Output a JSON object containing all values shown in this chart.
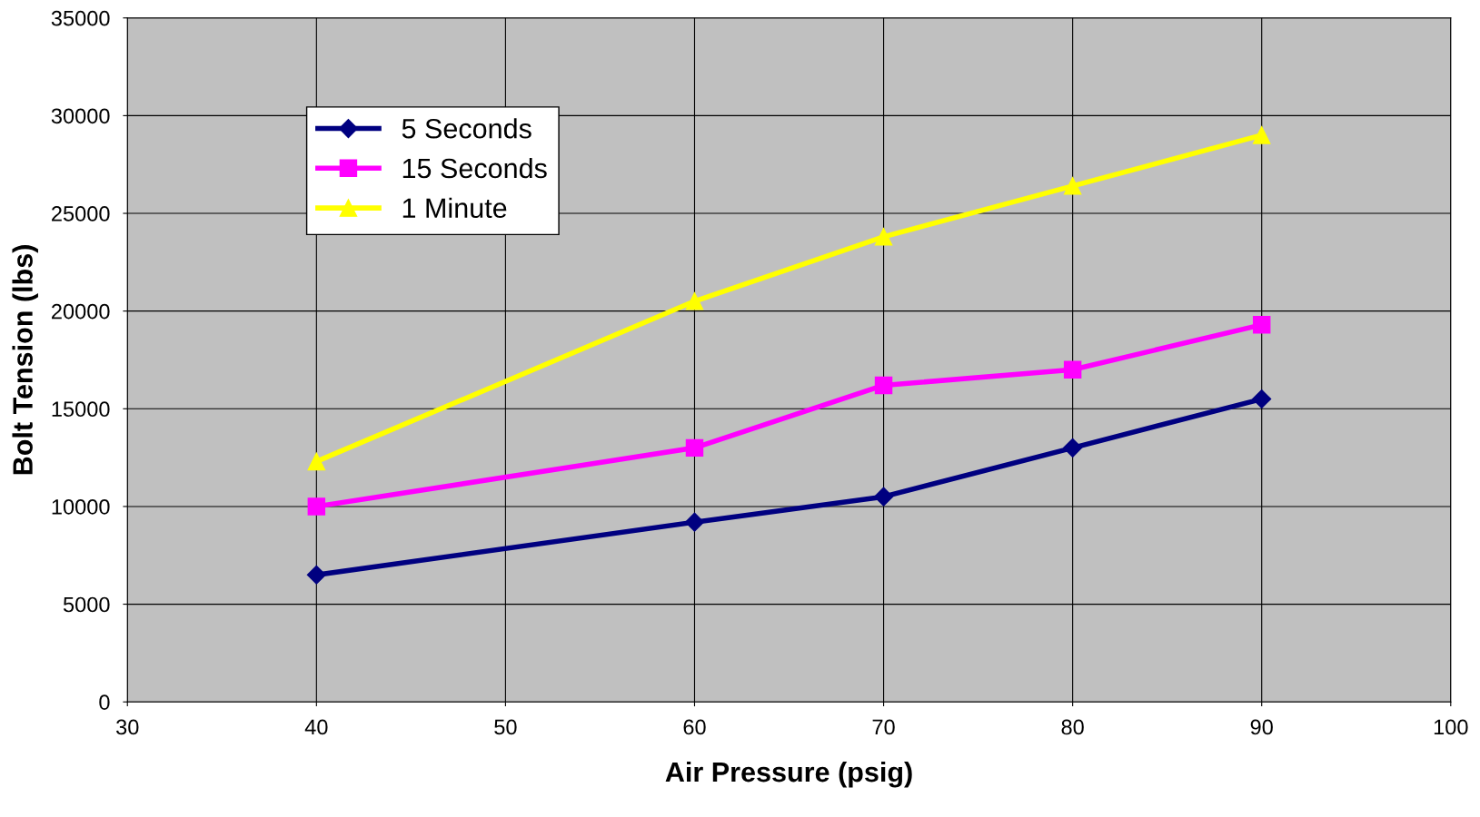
{
  "chart_data": {
    "type": "line",
    "xlabel": "Air Pressure (psig)",
    "ylabel": "Bolt Tension (lbs)",
    "x": [
      40,
      60,
      70,
      80,
      90
    ],
    "series": [
      {
        "name": "5 Seconds",
        "color": "#000080",
        "marker": "diamond",
        "values": [
          6500,
          9200,
          10500,
          13000,
          15500
        ]
      },
      {
        "name": "15 Seconds",
        "color": "#ff00ff",
        "marker": "square",
        "values": [
          10000,
          13000,
          16200,
          17000,
          19300
        ]
      },
      {
        "name": "1 Minute",
        "color": "#ffff00",
        "marker": "triangle",
        "values": [
          12300,
          20500,
          23800,
          26400,
          29000
        ]
      }
    ],
    "xlim": [
      30,
      100
    ],
    "xticks": [
      30,
      40,
      50,
      60,
      70,
      80,
      90,
      100
    ],
    "ylim": [
      0,
      35000
    ],
    "yticks": [
      0,
      5000,
      10000,
      15000,
      20000,
      25000,
      30000,
      35000
    ],
    "grid": true,
    "legend": "top left",
    "line_style": "solid"
  }
}
